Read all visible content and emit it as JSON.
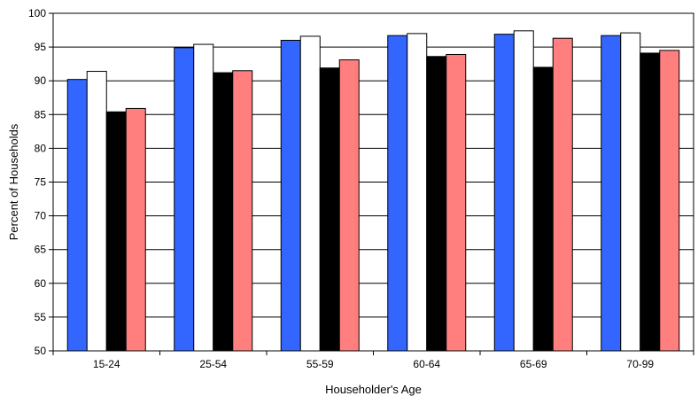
{
  "chart_data": {
    "type": "bar",
    "title": "",
    "xlabel": "Householder's Age",
    "ylabel": "Percent of Households",
    "ylim": [
      50,
      100
    ],
    "yticks": [
      50,
      55,
      60,
      65,
      70,
      75,
      80,
      85,
      90,
      95,
      100
    ],
    "grid": "horizontal",
    "legend": "none",
    "categories": [
      "15-24",
      "25-54",
      "55-59",
      "60-64",
      "65-69",
      "70-99"
    ],
    "series": [
      {
        "color": "#3366ff",
        "values": [
          90.2,
          94.9,
          96.0,
          96.7,
          96.9,
          96.7
        ]
      },
      {
        "color": "#ffffff",
        "values": [
          91.4,
          95.4,
          96.6,
          97.0,
          97.4,
          97.1
        ]
      },
      {
        "color": "#000000",
        "values": [
          85.4,
          91.2,
          91.9,
          93.6,
          92.0,
          94.1
        ]
      },
      {
        "color": "#ff7f7f",
        "values": [
          85.9,
          91.5,
          93.1,
          93.9,
          96.3,
          94.5
        ]
      }
    ]
  }
}
